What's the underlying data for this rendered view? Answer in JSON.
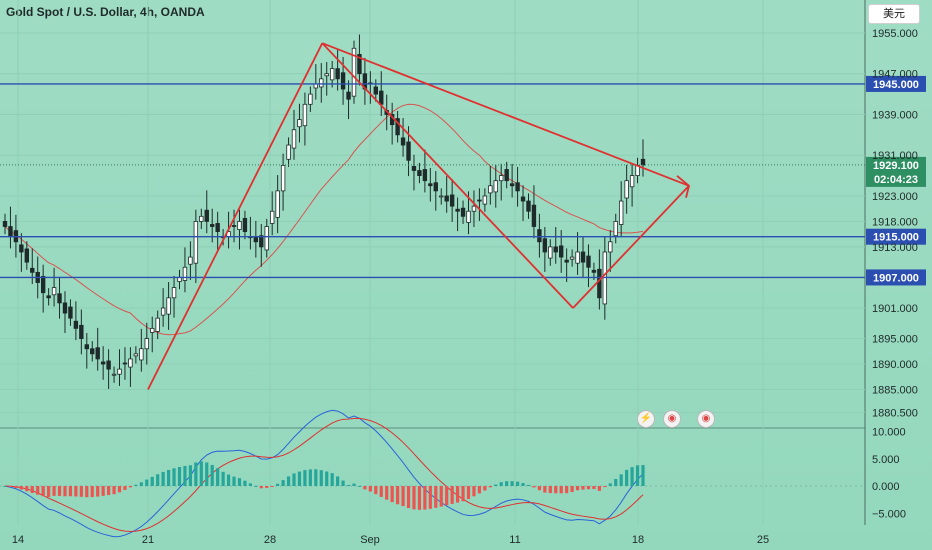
{
  "header": {
    "title": "Gold Spot / U.S. Dollar, 4h, OANDA",
    "currency_label": "美元"
  },
  "events": [
    {
      "icon": "lightning-icon",
      "glyph": "⚡"
    },
    {
      "icon": "us-flag-icon",
      "glyph": "◉"
    },
    {
      "icon": "us-flag-icon-2",
      "glyph": "◉"
    }
  ],
  "chart_data": [
    {
      "type": "candlestick",
      "title": "Gold Spot / U.S. Dollar, 4h, OANDA",
      "y_ticks": [
        "1955.000",
        "1947.000",
        "1939.000",
        "1931.000",
        "1923.000",
        "1918.000",
        "1913.000",
        "1901.000",
        "1895.000",
        "1890.000",
        "1885.000",
        "1880.500"
      ],
      "y_tick_values": [
        1955,
        1947,
        1939,
        1931,
        1923,
        1918,
        1913,
        1901,
        1895,
        1890,
        1885,
        1880.5
      ],
      "x_ticks": [
        "14",
        "21",
        "28",
        "Sep",
        "11",
        "18",
        "25"
      ],
      "horizontal_levels": [
        {
          "value": 1945,
          "label": "1945.000"
        },
        {
          "value": 1915,
          "label": "1915.000"
        },
        {
          "value": 1907,
          "label": "1907.000"
        }
      ],
      "last_price": {
        "value": 1929.1,
        "label": "1929.100",
        "countdown": "02:04:23"
      },
      "trendlines": [
        {
          "from": [
            "Aug 21",
            1885
          ],
          "to": [
            "Aug 31",
            1953
          ]
        },
        {
          "from": [
            "Aug 31",
            1953
          ],
          "to": [
            "Sep 15",
            1901
          ]
        },
        {
          "from": [
            "Aug 31",
            1953
          ],
          "to": [
            "Sep 23",
            1925
          ]
        },
        {
          "from": [
            "Sep 15",
            1901
          ],
          "to": [
            "Sep 23",
            1925
          ]
        }
      ],
      "closes": [
        1917,
        1915,
        1914,
        1912,
        1910,
        1908,
        1906,
        1904,
        1903,
        1905,
        1902,
        1900,
        1899,
        1897,
        1895,
        1893,
        1892,
        1891,
        1890,
        1889,
        1888,
        1889,
        1890,
        1891,
        1892,
        1893,
        1895,
        1897,
        1899,
        1901,
        1903,
        1905,
        1907,
        1909,
        1911,
        1918,
        1919,
        1918,
        1917,
        1916,
        1915,
        1916,
        1917,
        1918,
        1916,
        1915,
        1914,
        1913,
        1917,
        1920,
        1924,
        1929,
        1933,
        1936,
        1938,
        1941,
        1943,
        1945,
        1946,
        1947,
        1948,
        1946,
        1944,
        1942,
        1952,
        1947,
        1944,
        1945,
        1943,
        1941,
        1939,
        1937,
        1935,
        1933,
        1930,
        1928,
        1927,
        1926,
        1925,
        1924,
        1923,
        1922,
        1921,
        1920,
        1919,
        1920,
        1921,
        1922,
        1923,
        1925,
        1926,
        1927,
        1926,
        1925,
        1924,
        1922,
        1920,
        1917,
        1914,
        1912,
        1913,
        1912,
        1911,
        1910,
        1911,
        1912,
        1910,
        1909,
        1908,
        1903,
        1912,
        1914,
        1918,
        1922,
        1926,
        1927,
        1929,
        1929.1
      ]
    },
    {
      "type": "macd",
      "y_ticks": [
        "10.000",
        "5.000",
        "0.000",
        "−5.000"
      ],
      "y_tick_values": [
        10,
        5,
        0,
        -5
      ]
    }
  ]
}
